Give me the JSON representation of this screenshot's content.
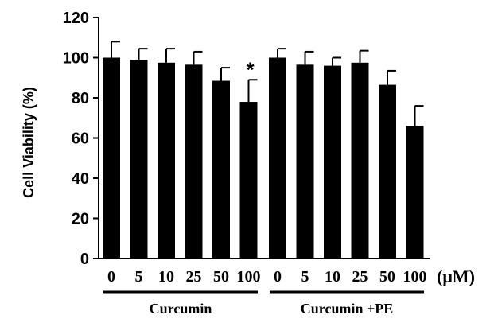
{
  "chart_data": {
    "type": "bar",
    "ylabel": "Cell Viability (%)",
    "ylim": [
      0,
      120
    ],
    "yticks": [
      0,
      20,
      40,
      60,
      80,
      100,
      120
    ],
    "unit_label": "(μM)",
    "groups": [
      {
        "label": "Curcumin",
        "categories": [
          "0",
          "5",
          "10",
          "25",
          "50",
          "100"
        ],
        "values": [
          100,
          99,
          97.5,
          96.5,
          88.5,
          78
        ],
        "errors": [
          8,
          5.5,
          7,
          6.5,
          6.5,
          11
        ]
      },
      {
        "label": "Curcumin +PE",
        "categories": [
          "0",
          "5",
          "10",
          "25",
          "50",
          "100"
        ],
        "values": [
          100,
          96.5,
          96,
          97.5,
          86.5,
          66
        ],
        "errors": [
          4.5,
          6.5,
          4,
          6,
          7,
          10
        ]
      }
    ],
    "annotations": [
      {
        "text": "*",
        "group": 0,
        "bar": 5
      }
    ],
    "bar_color": "#000000",
    "legend": "none",
    "grid": false
  }
}
